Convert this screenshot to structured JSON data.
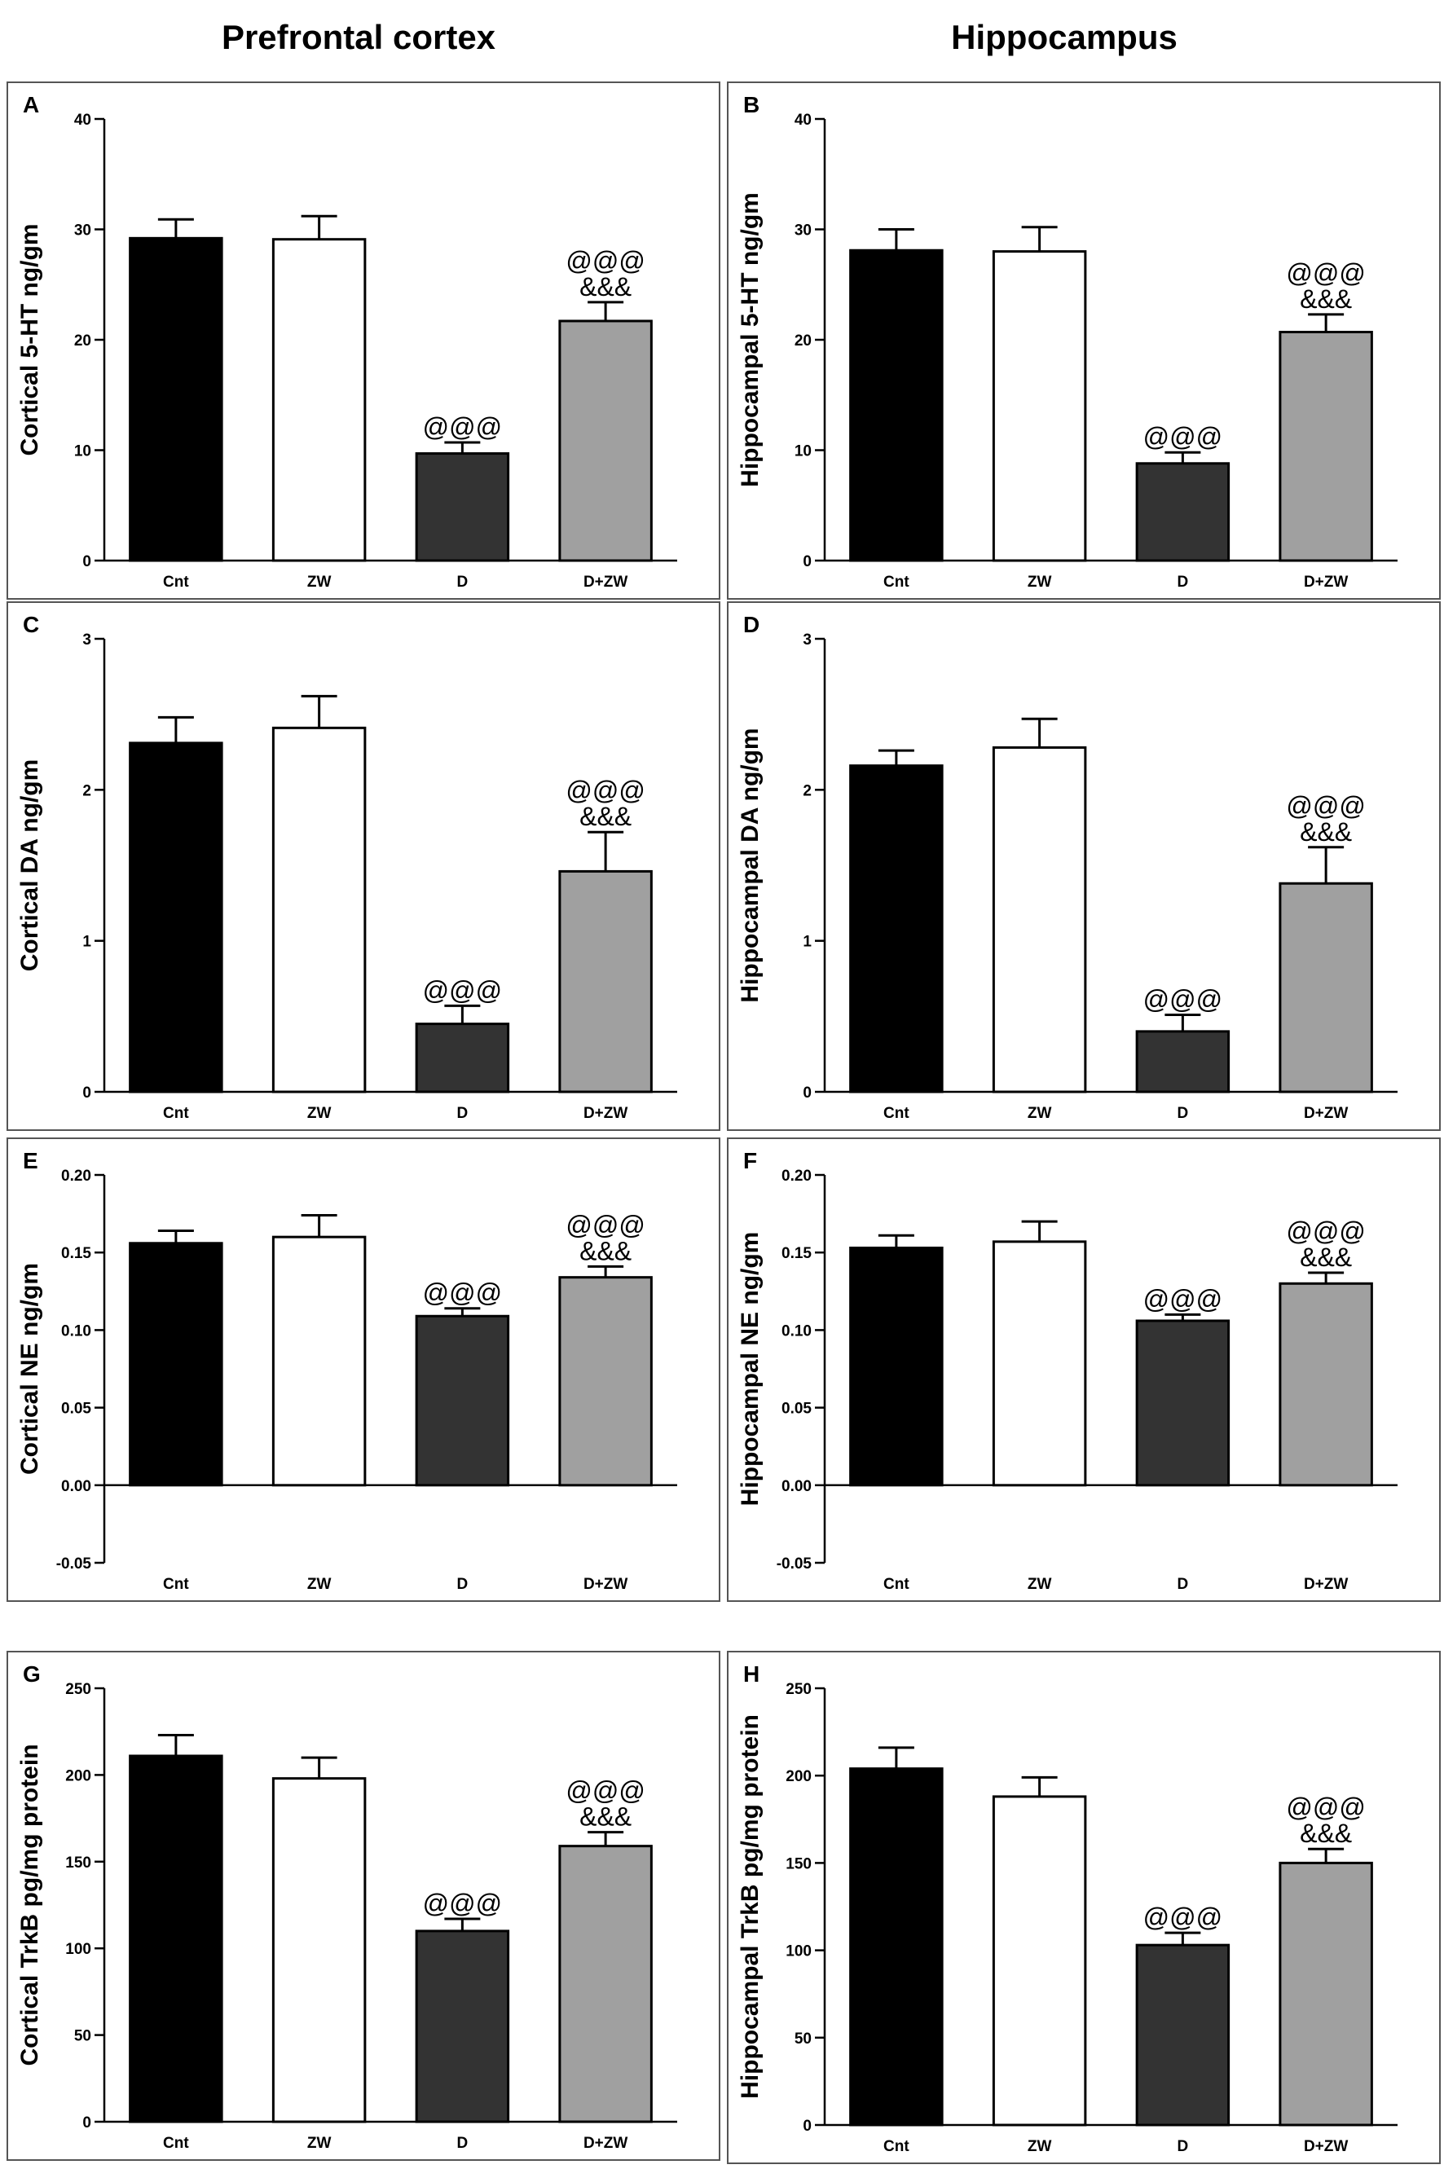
{
  "column_titles": {
    "left": "Prefrontal cortex",
    "right": "Hippocampus"
  },
  "colors": {
    "Cnt": "#000000",
    "ZW": "#ffffff",
    "D": "#333333",
    "D+ZW": "#a0a0a0"
  },
  "chart_data": [
    {
      "id": "A",
      "letter": "A",
      "type": "bar",
      "ylabel": "Cortical 5-HT ng/gm",
      "categories": [
        "Cnt",
        "ZW",
        "D",
        "D+ZW"
      ],
      "values": [
        29.2,
        29.1,
        9.7,
        21.7
      ],
      "errors": [
        1.7,
        2.1,
        1.0,
        1.7
      ],
      "annotations": [
        [],
        [],
        [
          "@@@"
        ],
        [
          "@@@",
          "&&&"
        ]
      ],
      "ylim": [
        0,
        40
      ],
      "ticks": [
        "0",
        "10",
        "20",
        "30",
        "40"
      ]
    },
    {
      "id": "B",
      "letter": "B",
      "type": "bar",
      "ylabel": "Hippocampal 5-HT ng/gm",
      "categories": [
        "Cnt",
        "ZW",
        "D",
        "D+ZW"
      ],
      "values": [
        28.1,
        28.0,
        8.8,
        20.7
      ],
      "errors": [
        1.9,
        2.2,
        1.0,
        1.6
      ],
      "annotations": [
        [],
        [],
        [
          "@@@"
        ],
        [
          "@@@",
          "&&&"
        ]
      ],
      "ylim": [
        0,
        40
      ],
      "ticks": [
        "0",
        "10",
        "20",
        "30",
        "40"
      ]
    },
    {
      "id": "C",
      "letter": "C",
      "type": "bar",
      "ylabel": "Cortical DA ng/gm",
      "categories": [
        "Cnt",
        "ZW",
        "D",
        "D+ZW"
      ],
      "values": [
        2.31,
        2.41,
        0.45,
        1.46
      ],
      "errors": [
        0.17,
        0.21,
        0.12,
        0.26
      ],
      "annotations": [
        [],
        [],
        [
          "@@@"
        ],
        [
          "@@@",
          "&&&"
        ]
      ],
      "ylim": [
        0,
        3
      ],
      "ticks": [
        "0",
        "1",
        "2",
        "3"
      ]
    },
    {
      "id": "D",
      "letter": "D",
      "type": "bar",
      "ylabel": "Hippocampal DA ng/gm",
      "categories": [
        "Cnt",
        "ZW",
        "D",
        "D+ZW"
      ],
      "values": [
        2.16,
        2.28,
        0.4,
        1.38
      ],
      "errors": [
        0.1,
        0.19,
        0.11,
        0.24
      ],
      "annotations": [
        [],
        [],
        [
          "@@@"
        ],
        [
          "@@@",
          "&&&"
        ]
      ],
      "ylim": [
        0,
        3
      ],
      "ticks": [
        "0",
        "1",
        "2",
        "3"
      ]
    },
    {
      "id": "E",
      "letter": "E",
      "type": "bar",
      "ylabel": "Cortical NE ng/gm",
      "categories": [
        "Cnt",
        "ZW",
        "D",
        "D+ZW"
      ],
      "values": [
        0.156,
        0.16,
        0.109,
        0.134
      ],
      "errors": [
        0.008,
        0.014,
        0.005,
        0.007
      ],
      "annotations": [
        [],
        [],
        [
          "@@@"
        ],
        [
          "@@@",
          "&&&"
        ]
      ],
      "ylim": [
        -0.05,
        0.2
      ],
      "ticks": [
        "-0.05",
        "0.00",
        "0.05",
        "0.10",
        "0.15",
        "0.20"
      ]
    },
    {
      "id": "F",
      "letter": "F",
      "type": "bar",
      "ylabel": "Hippocampal NE ng/gm",
      "categories": [
        "Cnt",
        "ZW",
        "D",
        "D+ZW"
      ],
      "values": [
        0.153,
        0.157,
        0.106,
        0.13
      ],
      "errors": [
        0.008,
        0.013,
        0.004,
        0.007
      ],
      "annotations": [
        [],
        [],
        [
          "@@@"
        ],
        [
          "@@@",
          "&&&"
        ]
      ],
      "ylim": [
        -0.05,
        0.2
      ],
      "ticks": [
        "-0.05",
        "0.00",
        "0.05",
        "0.10",
        "0.15",
        "0.20"
      ]
    },
    {
      "id": "G",
      "letter": "G",
      "type": "bar",
      "ylabel": "Cortical TrkB pg/mg protein",
      "categories": [
        "Cnt",
        "ZW",
        "D",
        "D+ZW"
      ],
      "values": [
        211,
        198,
        110,
        159
      ],
      "errors": [
        12,
        12,
        7,
        8
      ],
      "annotations": [
        [],
        [],
        [
          "@@@"
        ],
        [
          "@@@",
          "&&&"
        ]
      ],
      "ylim": [
        0,
        250
      ],
      "ticks": [
        "0",
        "50",
        "100",
        "150",
        "200",
        "250"
      ]
    },
    {
      "id": "H",
      "letter": "H",
      "type": "bar",
      "ylabel": "Hippocampal TrkB pg/mg protein",
      "categories": [
        "Cnt",
        "ZW",
        "D",
        "D+ZW"
      ],
      "values": [
        204,
        188,
        103,
        150
      ],
      "errors": [
        12,
        11,
        7,
        8
      ],
      "annotations": [
        [],
        [],
        [
          "@@@"
        ],
        [
          "@@@",
          "&&&"
        ]
      ],
      "ylim": [
        0,
        250
      ],
      "ticks": [
        "0",
        "50",
        "100",
        "150",
        "200",
        "250"
      ]
    }
  ]
}
